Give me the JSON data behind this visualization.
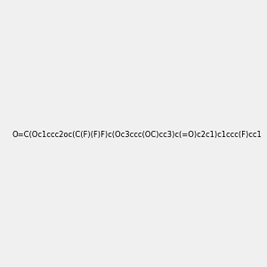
{
  "smiles": "O=C(Oc1ccc2oc(C(F)(F)F)c(Oc3ccc(OC)cc3)c(=O)c2c1)c1ccc(F)cc1",
  "image_size": 300,
  "bg_color": "#f0f0f0"
}
